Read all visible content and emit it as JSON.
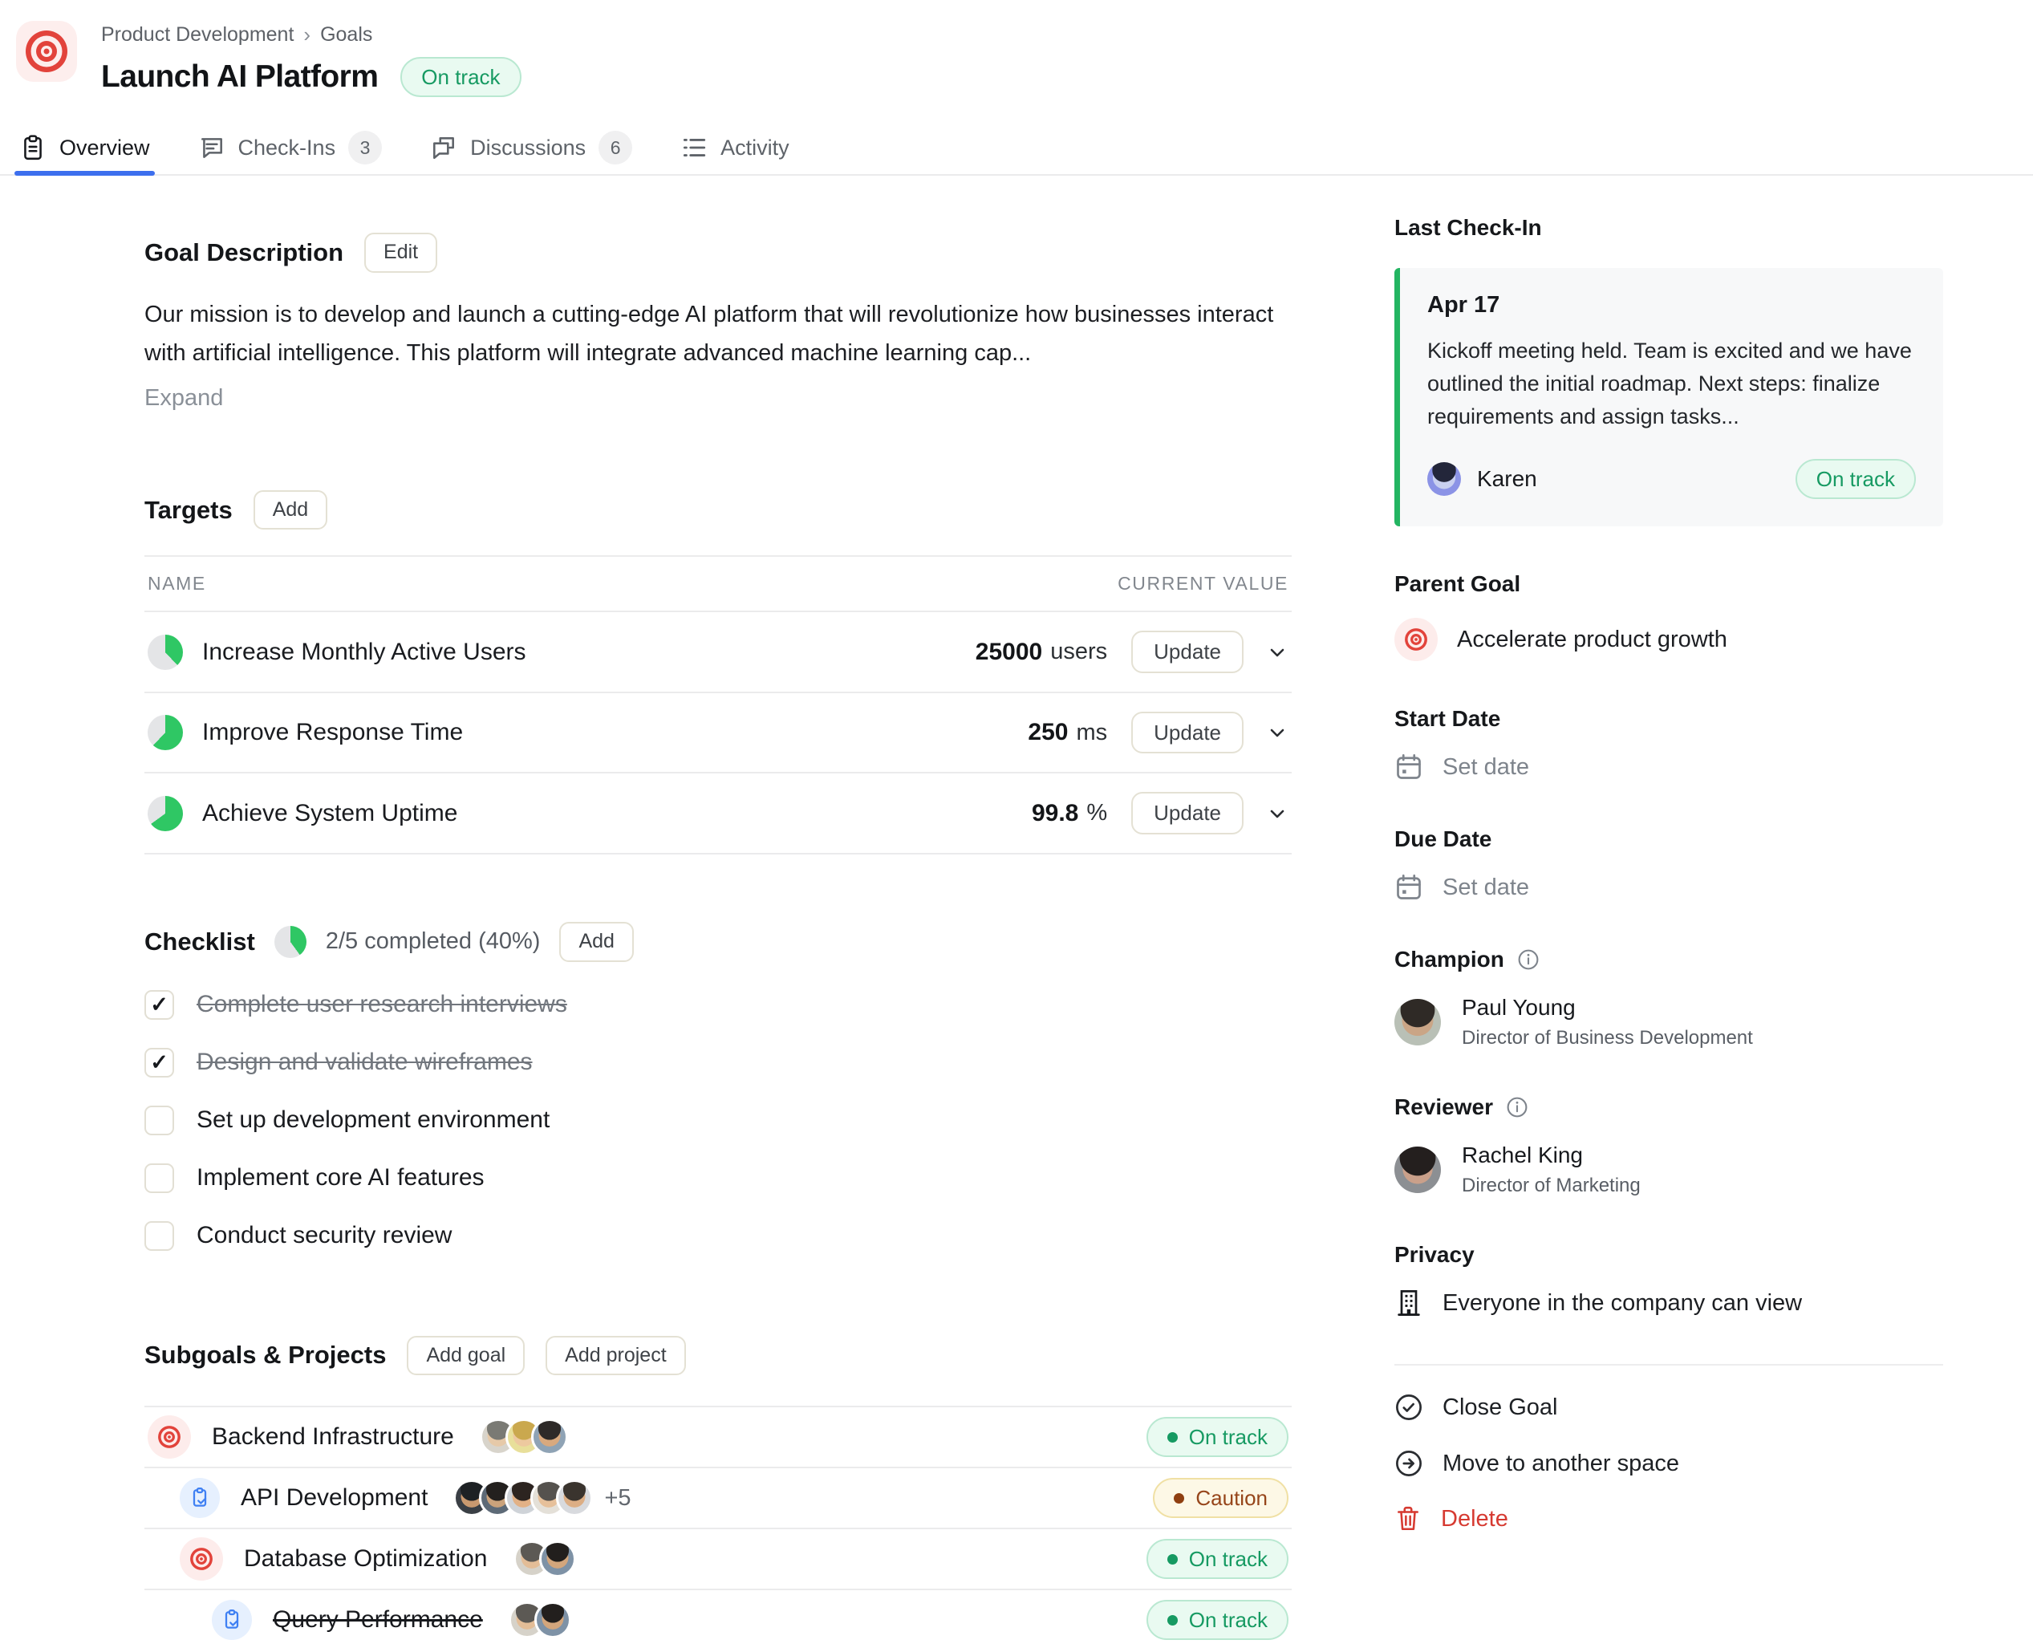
{
  "header": {
    "breadcrumb": [
      "Product Development",
      "Goals"
    ],
    "title": "Launch AI Platform",
    "status": "On track",
    "status_type": "green"
  },
  "tabs": [
    {
      "label": "Overview",
      "count": ""
    },
    {
      "label": "Check-Ins",
      "count": "3"
    },
    {
      "label": "Discussions",
      "count": "6"
    },
    {
      "label": "Activity",
      "count": ""
    }
  ],
  "description": {
    "heading": "Goal Description",
    "edit_label": "Edit",
    "text": "Our mission is to develop and launch a cutting-edge AI platform that will revolutionize how businesses interact with artificial intelligence. This platform will integrate advanced machine learning cap...",
    "expand_label": "Expand"
  },
  "targets": {
    "heading": "Targets",
    "add_label": "Add",
    "columns": {
      "name": "NAME",
      "value": "CURRENT VALUE"
    },
    "rows": [
      {
        "name": "Increase Monthly Active Users",
        "value": "25000",
        "unit": "users",
        "progress": 38,
        "update_label": "Update"
      },
      {
        "name": "Improve Response Time",
        "value": "250",
        "unit": "ms",
        "progress": 62,
        "update_label": "Update"
      },
      {
        "name": "Achieve System Uptime",
        "value": "99.8",
        "unit": "%",
        "progress": 65,
        "update_label": "Update"
      }
    ]
  },
  "checklist": {
    "heading": "Checklist",
    "progress": 40,
    "summary": "2/5 completed (40%)",
    "add_label": "Add",
    "items": [
      {
        "label": "Complete user research interviews",
        "done": true
      },
      {
        "label": "Design and validate wireframes",
        "done": true
      },
      {
        "label": "Set up development environment",
        "done": false
      },
      {
        "label": "Implement core AI features",
        "done": false
      },
      {
        "label": "Conduct security review",
        "done": false
      }
    ]
  },
  "subgoals": {
    "heading": "Subgoals & Projects",
    "add_goal_label": "Add goal",
    "add_project_label": "Add project",
    "rows": [
      {
        "name": "Backend Infrastructure",
        "type": "goal",
        "level": 0,
        "status": "On track",
        "status_type": "green",
        "extra": "",
        "done": false,
        "avatars": [
          {
            "hair": "#7a7a74",
            "skin": "#e6c9a8",
            "bg": "#d8d4cb"
          },
          {
            "hair": "#caa84e",
            "skin": "#edc99f",
            "bg": "#e8df9a"
          },
          {
            "hair": "#2e2a28",
            "skin": "#d9a97e",
            "bg": "#8fa3b5"
          }
        ]
      },
      {
        "name": "API Development",
        "type": "project",
        "level": 1,
        "status": "Caution",
        "status_type": "yellow",
        "extra": "+5",
        "done": false,
        "avatars": [
          {
            "hair": "#1d2124",
            "skin": "#c9996f",
            "bg": "#3a3f45"
          },
          {
            "hair": "#23201e",
            "skin": "#caa27b",
            "bg": "#5d6a77"
          },
          {
            "hair": "#2c2420",
            "skin": "#e2b186",
            "bg": "#cfd3d8"
          },
          {
            "hair": "#55524e",
            "skin": "#e6c09a",
            "bg": "#e4e0d8"
          },
          {
            "hair": "#3a342e",
            "skin": "#dcae85",
            "bg": "#d8dade"
          }
        ]
      },
      {
        "name": "Database Optimization",
        "type": "goal",
        "level": 1,
        "status": "On track",
        "status_type": "green",
        "extra": "",
        "done": false,
        "avatars": [
          {
            "hair": "#5c5954",
            "skin": "#e3bd97",
            "bg": "#d6d2c9"
          },
          {
            "hair": "#221f1d",
            "skin": "#d3a67c",
            "bg": "#7e92a6"
          }
        ]
      },
      {
        "name": "Query Performance",
        "type": "project",
        "level": 2,
        "status": "On track",
        "status_type": "green",
        "extra": "",
        "done": true,
        "avatars": [
          {
            "hair": "#5c5954",
            "skin": "#e3bd97",
            "bg": "#d6d2c9"
          },
          {
            "hair": "#221f1d",
            "skin": "#d3a67c",
            "bg": "#7e92a6"
          }
        ]
      }
    ]
  },
  "sidebar": {
    "last_checkin": {
      "heading": "Last Check-In",
      "date": "Apr 17",
      "text": "Kickoff meeting held. Team is excited and we have outlined the initial roadmap. Next steps: finalize requirements and assign tasks...",
      "author": "Karen",
      "status": "On track",
      "status_type": "green"
    },
    "parent_goal": {
      "heading": "Parent Goal",
      "name": "Accelerate product growth"
    },
    "start_date": {
      "heading": "Start Date",
      "placeholder": "Set date"
    },
    "due_date": {
      "heading": "Due Date",
      "placeholder": "Set date"
    },
    "champion": {
      "heading": "Champion",
      "name": "Paul Young",
      "role": "Director of Business Development"
    },
    "reviewer": {
      "heading": "Reviewer",
      "name": "Rachel King",
      "role": "Director of Marketing"
    },
    "privacy": {
      "heading": "Privacy",
      "text": "Everyone in the company can view"
    },
    "actions": [
      {
        "label": "Close Goal"
      },
      {
        "label": "Move to another space"
      },
      {
        "label": "Delete"
      }
    ]
  },
  "colors": {
    "accent_blue": "#3d6fee",
    "success_green": "#169a62",
    "caution_text": "#96451a",
    "danger_red": "#d63a31",
    "goal_red": "#e2433b",
    "project_blue": "#3f80f3",
    "pie_green": "#2fc764"
  }
}
